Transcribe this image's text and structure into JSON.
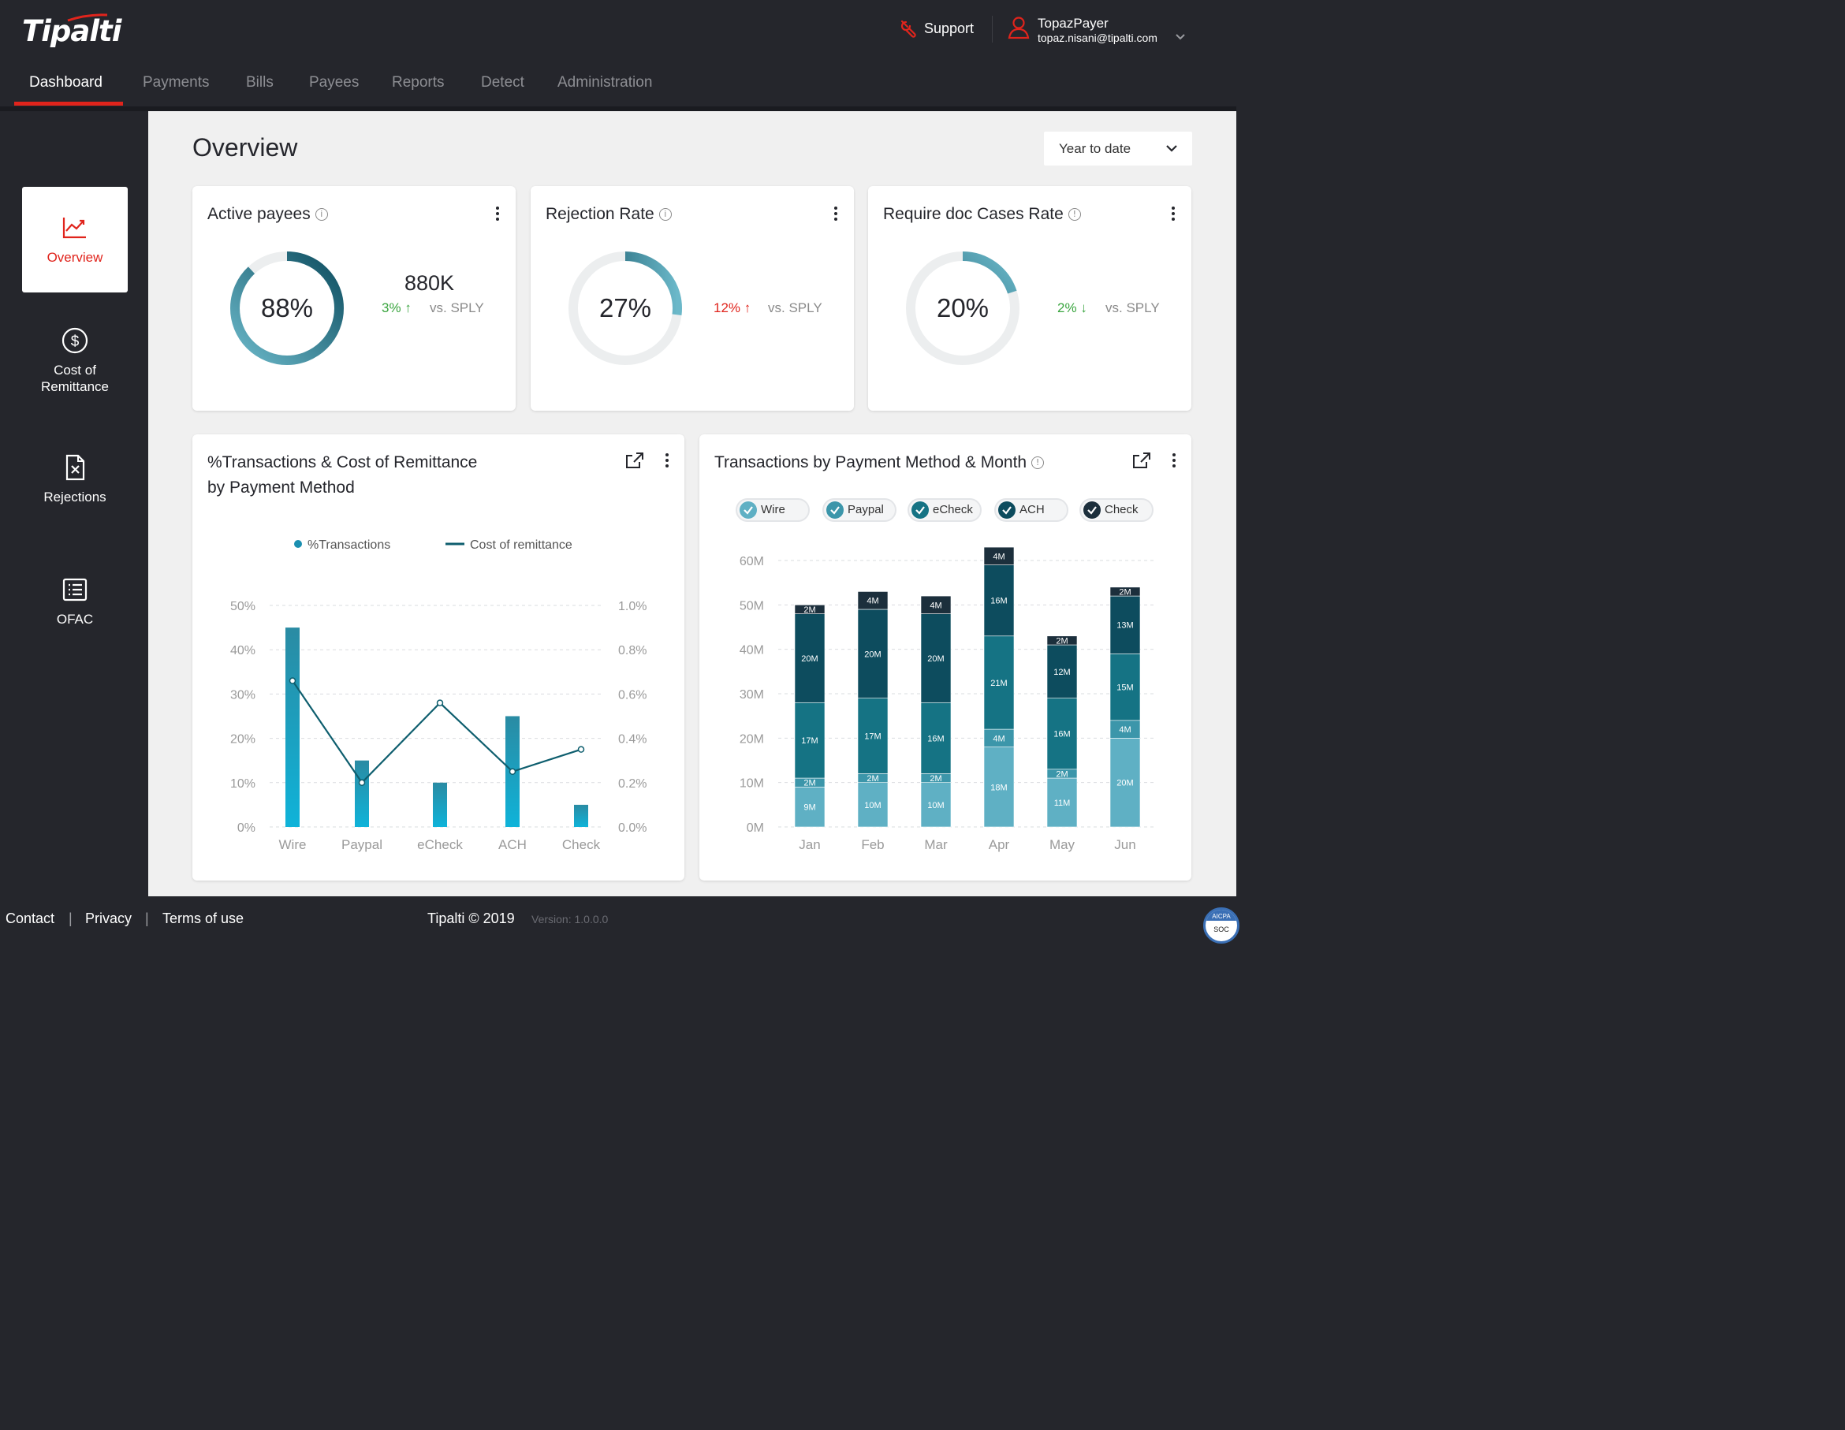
{
  "brand": {
    "name": "Tipalti",
    "accent": "#e0241c"
  },
  "nav": {
    "items": [
      "Dashboard",
      "Payments",
      "Bills",
      "Payees",
      "Reports",
      "Detect",
      "Administration"
    ],
    "active": "Dashboard"
  },
  "header": {
    "support_label": "Support",
    "user_name": "TopazPayer",
    "user_email": "topaz.nisani@tipalti.com"
  },
  "sidebar": {
    "items": [
      {
        "label": "Overview",
        "icon": "trend-chart-icon"
      },
      {
        "label": "Cost of Remittance",
        "icon": "dollar-circle-icon"
      },
      {
        "label": "Rejections",
        "icon": "rejected-document-icon"
      },
      {
        "label": "OFAC",
        "icon": "list-icon"
      }
    ]
  },
  "main": {
    "title": "Overview",
    "period": "Year to date"
  },
  "kpis": [
    {
      "title": "Active payees",
      "value": "88%",
      "percent": 88,
      "count": "880K",
      "delta": "3%",
      "direction": "up",
      "delta_color": "#3aa53f",
      "vs": "vs. SPLY"
    },
    {
      "title": "Rejection Rate",
      "value": "27%",
      "percent": 27,
      "delta": "12%",
      "direction": "up",
      "delta_color": "#e0241c",
      "vs": "vs. SPLY"
    },
    {
      "title": "Require doc Cases Rate",
      "value": "20%",
      "percent": 20,
      "delta": "2%",
      "direction": "down",
      "delta_color": "#3aa53f",
      "vs": "vs. SPLY"
    }
  ],
  "chart_titles": {
    "combo_line1": "%Transactions & Cost of Remittance",
    "combo_line2": "by Payment Method",
    "stacked": "Transactions by Payment Method & Month"
  },
  "chart_data": [
    {
      "type": "bar",
      "title": "%Transactions & Cost of Remittance by Payment Method",
      "categories": [
        "Wire",
        "Paypal",
        "eCheck",
        "ACH",
        "Check"
      ],
      "series": [
        {
          "name": "%Transactions",
          "kind": "bar",
          "axis": "left",
          "values": [
            45,
            15,
            10,
            25,
            5
          ]
        },
        {
          "name": "Cost of remittance",
          "kind": "line",
          "axis": "right",
          "values": [
            0.66,
            0.2,
            0.56,
            0.25,
            0.35
          ]
        }
      ],
      "y_left": {
        "ticks": [
          "0%",
          "10%",
          "20%",
          "30%",
          "40%",
          "50%"
        ],
        "range": [
          0,
          50
        ]
      },
      "y_right": {
        "ticks": [
          "0.0%",
          "0.2%",
          "0.4%",
          "0.6%",
          "0.8%",
          "1.0%"
        ],
        "range": [
          0,
          1
        ]
      },
      "legend": "top-center",
      "grid": true
    },
    {
      "type": "bar",
      "stacked": true,
      "title": "Transactions by Payment Method & Month",
      "categories": [
        "Jan",
        "Feb",
        "Mar",
        "Apr",
        "May",
        "Jun"
      ],
      "series": [
        {
          "name": "Wire",
          "color": "#5fb0c4",
          "values": [
            9,
            10,
            10,
            18,
            11,
            20
          ],
          "labels": [
            "9M",
            "10M",
            "10M",
            "18M",
            "11M",
            "20M"
          ]
        },
        {
          "name": "Paypal",
          "color": "#3c96aa",
          "values": [
            2,
            2,
            2,
            4,
            2,
            4
          ],
          "labels": [
            "2M",
            "2M",
            "2M",
            "4M",
            "2M",
            "4M"
          ]
        },
        {
          "name": "eCheck",
          "color": "#157384",
          "values": [
            17,
            17,
            16,
            21,
            16,
            15
          ],
          "labels": [
            "17M",
            "17M",
            "16M",
            "21M",
            "16M",
            "15M"
          ]
        },
        {
          "name": "ACH",
          "color": "#0d4c5e",
          "values": [
            20,
            20,
            20,
            16,
            12,
            13
          ],
          "labels": [
            "20M",
            "20M",
            "20M",
            "16M",
            "12M",
            "13M"
          ]
        },
        {
          "name": "Check",
          "color": "#1c2f3c",
          "values": [
            2,
            4,
            4,
            4,
            2,
            2
          ],
          "labels": [
            "2M",
            "4M",
            "4M",
            "4M",
            "2M",
            "2M"
          ]
        }
      ],
      "y": {
        "ticks": [
          "0M",
          "10M",
          "20M",
          "30M",
          "40M",
          "50M",
          "60M"
        ],
        "range": [
          0,
          60
        ]
      },
      "legend": "top",
      "grid": true
    }
  ],
  "footer": {
    "contact": "Contact",
    "privacy": "Privacy",
    "terms": "Terms of use",
    "sep": "|",
    "copyright": "Tipalti © 2019",
    "version": "Version: 1.0.0.0",
    "badge_top": "AICPA",
    "badge_bottom": "SOC"
  }
}
